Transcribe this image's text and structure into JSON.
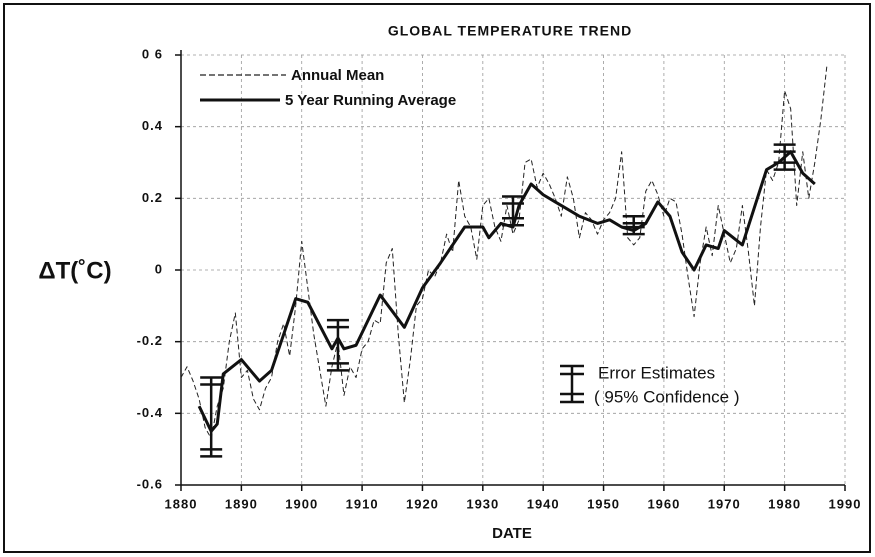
{
  "chart_data": {
    "type": "line",
    "title": "GLOBAL TEMPERATURE TREND",
    "xlabel": "DATE",
    "ylabel": "ΔT(˚C)",
    "xlim": [
      1880,
      1990
    ],
    "ylim": [
      -0.6,
      0.6
    ],
    "xticks": [
      1880,
      1890,
      1900,
      1910,
      1920,
      1930,
      1940,
      1950,
      1960,
      1970,
      1980,
      1990
    ],
    "yticks": [
      -0.6,
      -0.4,
      -0.2,
      0,
      0.2,
      0.4,
      {
        "value": 0.6,
        "label": "0 6"
      }
    ],
    "grid": true,
    "series": [
      {
        "name": "Annual Mean",
        "color": "#222",
        "style": "dashed",
        "x": [
          1880,
          1881,
          1882,
          1883,
          1884,
          1885,
          1886,
          1887,
          1888,
          1889,
          1890,
          1891,
          1892,
          1893,
          1894,
          1895,
          1896,
          1897,
          1898,
          1899,
          1900,
          1901,
          1902,
          1903,
          1904,
          1905,
          1906,
          1907,
          1908,
          1909,
          1910,
          1911,
          1912,
          1913,
          1914,
          1915,
          1916,
          1917,
          1918,
          1919,
          1920,
          1921,
          1922,
          1923,
          1924,
          1925,
          1926,
          1927,
          1928,
          1929,
          1930,
          1931,
          1932,
          1933,
          1934,
          1935,
          1936,
          1937,
          1938,
          1939,
          1940,
          1941,
          1942,
          1943,
          1944,
          1945,
          1946,
          1947,
          1948,
          1949,
          1950,
          1951,
          1952,
          1953,
          1954,
          1955,
          1956,
          1957,
          1958,
          1959,
          1960,
          1961,
          1962,
          1963,
          1964,
          1965,
          1966,
          1967,
          1968,
          1969,
          1970,
          1971,
          1972,
          1973,
          1974,
          1975,
          1976,
          1977,
          1978,
          1979,
          1980,
          1981,
          1982,
          1983,
          1984,
          1985,
          1986,
          1987
        ],
        "values": [
          -0.3,
          -0.27,
          -0.31,
          -0.36,
          -0.44,
          -0.47,
          -0.38,
          -0.33,
          -0.2,
          -0.12,
          -0.3,
          -0.28,
          -0.36,
          -0.39,
          -0.33,
          -0.3,
          -0.2,
          -0.15,
          -0.24,
          -0.1,
          0.08,
          -0.05,
          -0.18,
          -0.28,
          -0.38,
          -0.27,
          -0.2,
          -0.35,
          -0.27,
          -0.3,
          -0.22,
          -0.2,
          -0.14,
          -0.15,
          0.02,
          0.06,
          -0.18,
          -0.37,
          -0.25,
          -0.1,
          -0.08,
          0.0,
          -0.02,
          0.02,
          0.1,
          0.05,
          0.25,
          0.15,
          0.12,
          0.03,
          0.18,
          0.2,
          0.12,
          0.08,
          0.18,
          0.1,
          0.14,
          0.3,
          0.31,
          0.23,
          0.27,
          0.24,
          0.2,
          0.15,
          0.26,
          0.2,
          0.09,
          0.16,
          0.14,
          0.1,
          0.14,
          0.16,
          0.2,
          0.33,
          0.09,
          0.07,
          0.09,
          0.22,
          0.25,
          0.21,
          0.15,
          0.2,
          0.19,
          0.1,
          -0.02,
          -0.13,
          0.02,
          0.12,
          0.04,
          0.18,
          0.1,
          0.02,
          0.06,
          0.18,
          0.05,
          -0.1,
          0.12,
          0.28,
          0.25,
          0.3,
          0.5,
          0.45,
          0.18,
          0.33,
          0.2,
          0.3,
          0.42,
          0.57
        ]
      },
      {
        "name": "5 Year Running Average",
        "color": "#111",
        "style": "solid",
        "x": [
          1883,
          1885,
          1886,
          1887,
          1890,
          1893,
          1895,
          1899,
          1901,
          1905,
          1906,
          1907,
          1909,
          1913,
          1917,
          1920,
          1923,
          1927,
          1930,
          1931,
          1933,
          1935,
          1936,
          1938,
          1940,
          1942,
          1944,
          1946,
          1949,
          1951,
          1953,
          1955,
          1957,
          1959,
          1961,
          1963,
          1965,
          1967,
          1969,
          1970,
          1973,
          1977,
          1979,
          1981,
          1983,
          1985
        ],
        "values": [
          -0.38,
          -0.45,
          -0.43,
          -0.29,
          -0.25,
          -0.31,
          -0.28,
          -0.08,
          -0.09,
          -0.22,
          -0.19,
          -0.22,
          -0.21,
          -0.07,
          -0.16,
          -0.05,
          0.02,
          0.12,
          0.12,
          0.09,
          0.13,
          0.12,
          0.18,
          0.24,
          0.21,
          0.19,
          0.17,
          0.15,
          0.13,
          0.14,
          0.12,
          0.11,
          0.13,
          0.19,
          0.15,
          0.05,
          0.0,
          0.07,
          0.06,
          0.11,
          0.07,
          0.28,
          0.3,
          0.33,
          0.27,
          0.24
        ]
      }
    ],
    "error_bars": {
      "name": "Error Estimates",
      "note": "( 95% Confidence )",
      "x": [
        1885,
        1906,
        1935,
        1955,
        1980
      ],
      "values": [
        -0.41,
        -0.21,
        0.165,
        0.125,
        0.315
      ],
      "errors": [
        0.11,
        0.07,
        0.04,
        0.025,
        0.035
      ]
    }
  }
}
